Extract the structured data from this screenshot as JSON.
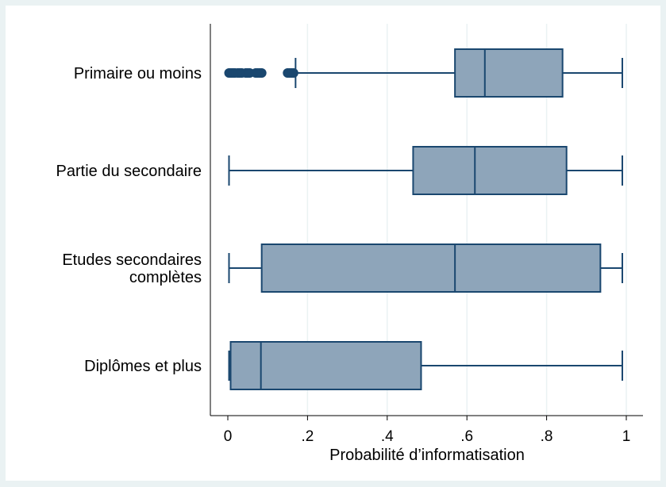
{
  "chart_data": {
    "type": "box",
    "orientation": "horizontal",
    "xlabel": "Probabilité d’informatisation",
    "xlim": [
      0,
      1
    ],
    "xticks": [
      0,
      0.2,
      0.4,
      0.6,
      0.8,
      1
    ],
    "xtick_labels": [
      "0",
      ".2",
      ".4",
      ".6",
      ".8",
      "1"
    ],
    "grid": "vertical",
    "colors": {
      "box_fill": "#8ea5ba",
      "box_stroke": "#1a476f",
      "grid": "#eaf2f3",
      "outer": "#eaf2f3"
    },
    "categories": [
      {
        "label_lines": [
          "Primaire ou moins"
        ],
        "whisker_low": 0.17,
        "q1": 0.57,
        "median": 0.645,
        "q3": 0.84,
        "whisker_high": 0.99,
        "outliers": [
          0.003,
          0.008,
          0.013,
          0.018,
          0.025,
          0.03,
          0.035,
          0.045,
          0.05,
          0.055,
          0.07,
          0.075,
          0.08,
          0.085,
          0.15,
          0.155,
          0.16,
          0.165
        ]
      },
      {
        "label_lines": [
          "Partie du secondaire"
        ],
        "whisker_low": 0.003,
        "q1": 0.465,
        "median": 0.62,
        "q3": 0.85,
        "whisker_high": 0.99,
        "outliers": []
      },
      {
        "label_lines": [
          "Etudes secondaires",
          "complètes"
        ],
        "whisker_low": 0.003,
        "q1": 0.085,
        "median": 0.57,
        "q3": 0.935,
        "whisker_high": 0.99,
        "outliers": []
      },
      {
        "label_lines": [
          "Diplômes et plus"
        ],
        "whisker_low": 0.003,
        "q1": 0.007,
        "median": 0.083,
        "q3": 0.485,
        "whisker_high": 0.99,
        "outliers": []
      }
    ]
  }
}
